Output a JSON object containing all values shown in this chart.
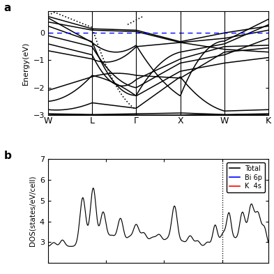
{
  "band_kpoints": [
    "W",
    "L",
    "Γ",
    "X",
    "W",
    "K"
  ],
  "band_kpoint_positions": [
    0,
    1,
    2,
    3,
    4,
    5
  ],
  "band_ylim": [
    -3.0,
    0.8
  ],
  "band_yticks": [
    -3,
    -2,
    -1,
    0
  ],
  "band_ylabel": "Energy(eV)",
  "band_fermi": 0.0,
  "dos_ylim": [
    2.0,
    7.0
  ],
  "dos_yticks": [
    3,
    4,
    5,
    6,
    7
  ],
  "dos_ylabel": "DOS(states/eV/cell)",
  "dos_legend": [
    "Total",
    "Bi 6p",
    "K  4s"
  ],
  "dos_legend_colors": [
    "black",
    "blue",
    "red"
  ],
  "background_color": "#ffffff",
  "figure_size": [
    3.93,
    3.93
  ],
  "dpi": 100
}
